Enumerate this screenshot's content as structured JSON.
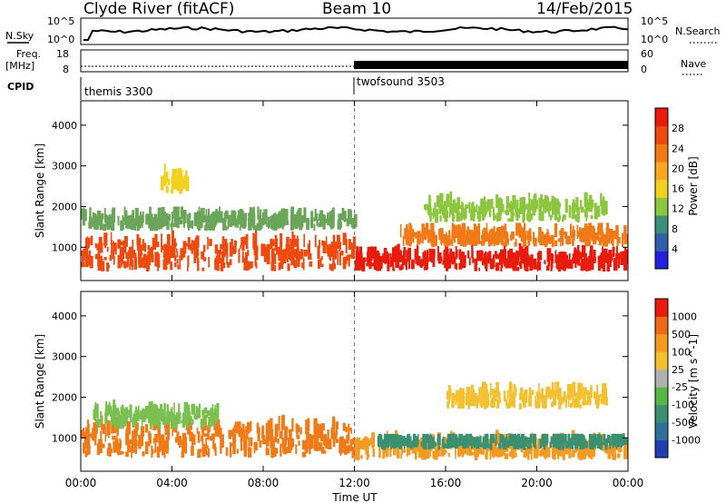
{
  "header": {
    "station": "Clyde River (fitACF)",
    "beam": "Beam 10",
    "date": "14/Feb/2015"
  },
  "nsky_panel": {
    "left_label": "N.Sky",
    "left_ticks": [
      "10^5",
      "10^0"
    ],
    "right_label": "N.Search",
    "right_ticks": [
      "10^5",
      "10^0"
    ]
  },
  "freq_panel": {
    "left_label_1": "Freq.",
    "left_label_2": "[MHz]",
    "left_ticks": [
      "18",
      "8"
    ],
    "right_label": "Nave",
    "right_ticks": [
      "60",
      "0"
    ]
  },
  "cpid_panel": {
    "label": "CPID",
    "modes": [
      {
        "name": "themis 3300",
        "start_hour": 0
      },
      {
        "name": "twofsound 3503",
        "start_hour": 12
      }
    ]
  },
  "chart_data": [
    {
      "type": "heatmap",
      "quantity": "Power",
      "ylabel": "Slant Range [km]",
      "ylim": [
        180,
        4600
      ],
      "yticks": [
        "1000",
        "2000",
        "3000",
        "4000"
      ],
      "xlim_hours": [
        0,
        24
      ],
      "colorbar_label": "Power [dB]",
      "colorbar_ticks": [
        "28",
        "24",
        "20",
        "16",
        "12",
        "8",
        "4"
      ],
      "colorbar_colors": [
        "#2222dd",
        "#2e5fa8",
        "#3d8f7a",
        "#8cc63e",
        "#f2d020",
        "#f7a820",
        "#f07a18",
        "#ee4a10",
        "#e81c0c"
      ],
      "echo_regions": [
        {
          "t0": 0.0,
          "t1": 12.0,
          "r0": 400,
          "r1": 1500,
          "fill": "#ee4a10"
        },
        {
          "t0": 0.0,
          "t1": 12.0,
          "r0": 1400,
          "r1": 1900,
          "fill": "#6aa55a"
        },
        {
          "t0": 12.0,
          "t1": 24.0,
          "r0": 400,
          "r1": 1000,
          "fill": "#e81c0c"
        },
        {
          "t0": 14.0,
          "t1": 24.0,
          "r0": 1000,
          "r1": 1500,
          "fill": "#f07a18"
        },
        {
          "t0": 15.0,
          "t1": 23.0,
          "r0": 1600,
          "r1": 2300,
          "fill": "#8cc63e"
        },
        {
          "t0": 3.5,
          "t1": 4.7,
          "r0": 2300,
          "r1": 3000,
          "fill": "#f2d020"
        }
      ]
    },
    {
      "type": "heatmap",
      "quantity": "Velocity",
      "ylabel": "Slant Range [km]",
      "ylim": [
        180,
        4600
      ],
      "yticks": [
        "1000",
        "2000",
        "3000",
        "4000"
      ],
      "xlim_hours": [
        0,
        24
      ],
      "xticks": [
        "00:00",
        "04:00",
        "08:00",
        "12:00",
        "16:00",
        "20:00",
        "00:00"
      ],
      "xlabel": "Time UT",
      "colorbar_label": "Velocity [m s^-1]",
      "colorbar_ticks": [
        "1000",
        "500",
        "100",
        "25",
        "-25",
        "-100",
        "-500",
        "-1000"
      ],
      "colorbar_colors": [
        "#1f3fb0",
        "#2f6f9a",
        "#3a9070",
        "#55b844",
        "#b0b0b0",
        "#f2c030",
        "#f59a20",
        "#ee6a18",
        "#e81c0c"
      ],
      "echo_regions": [
        {
          "t0": 0.0,
          "t1": 12.0,
          "r0": 500,
          "r1": 1700,
          "fill": "#f07a18"
        },
        {
          "t0": 0.5,
          "t1": 6.0,
          "r0": 1200,
          "r1": 1900,
          "fill": "#7ac050"
        },
        {
          "t0": 12.0,
          "t1": 24.0,
          "r0": 450,
          "r1": 1100,
          "fill": "#f59a20"
        },
        {
          "t0": 13.0,
          "t1": 24.0,
          "r0": 700,
          "r1": 1000,
          "fill": "#3a9070"
        },
        {
          "t0": 16.0,
          "t1": 23.0,
          "r0": 1700,
          "r1": 2300,
          "fill": "#f2c030"
        }
      ]
    }
  ]
}
